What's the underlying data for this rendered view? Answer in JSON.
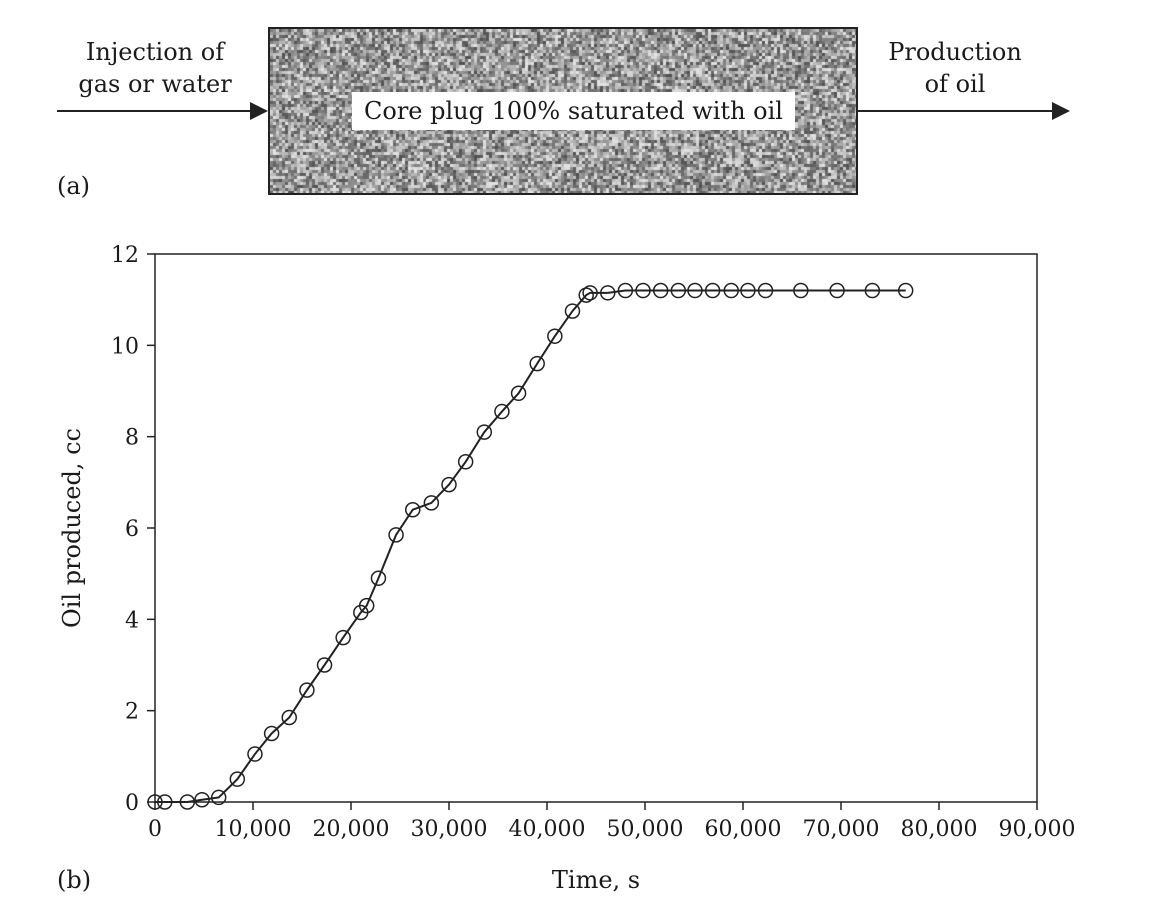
{
  "diagram": {
    "panel_label": "(a)",
    "inlet_label_line1": "Injection of",
    "inlet_label_line2": "gas or water",
    "core_label": "Core plug 100% saturated with oil",
    "outlet_label_line1": "Production",
    "outlet_label_line2": "of oil"
  },
  "chart_data": {
    "type": "line",
    "panel_label": "(b)",
    "title": "",
    "xlabel": "Time, s",
    "ylabel": "Oil produced, cc",
    "xlim": [
      0,
      90000
    ],
    "ylim": [
      0,
      12
    ],
    "xticks": [
      0,
      10000,
      20000,
      30000,
      40000,
      50000,
      60000,
      70000,
      80000,
      90000
    ],
    "xtick_labels": [
      "0",
      "10,000",
      "20,000",
      "30,000",
      "40,000",
      "50,000",
      "60,000",
      "70,000",
      "80,000",
      "90,000"
    ],
    "yticks": [
      0,
      2,
      4,
      6,
      8,
      10,
      12
    ],
    "ytick_labels": [
      "0",
      "2",
      "4",
      "6",
      "8",
      "10",
      "12"
    ],
    "grid": false,
    "legend": "none",
    "marker": "open-circle",
    "series": [
      {
        "name": "Oil produced",
        "x": [
          0,
          1000,
          3300,
          4800,
          6500,
          8400,
          10200,
          11900,
          13700,
          15500,
          17300,
          19200,
          21000,
          21600,
          22800,
          24600,
          26300,
          28200,
          30000,
          31700,
          33600,
          35400,
          37100,
          39000,
          40800,
          42600,
          44000,
          44400,
          46200,
          48000,
          49800,
          51600,
          53400,
          55100,
          56900,
          58800,
          60500,
          62300,
          65900,
          69600,
          73200,
          76600
        ],
        "y": [
          0,
          0,
          0,
          0.05,
          0.1,
          0.5,
          1.05,
          1.5,
          1.85,
          2.45,
          3.0,
          3.6,
          4.15,
          4.3,
          4.9,
          5.85,
          6.4,
          6.55,
          6.95,
          7.45,
          8.1,
          8.55,
          8.95,
          9.6,
          10.2,
          10.75,
          11.1,
          11.15,
          11.15,
          11.2,
          11.2,
          11.2,
          11.2,
          11.2,
          11.2,
          11.2,
          11.2,
          11.2,
          11.2,
          11.2,
          11.2,
          11.2
        ]
      }
    ]
  }
}
